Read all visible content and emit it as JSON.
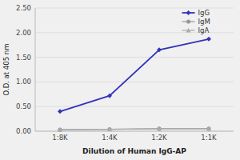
{
  "chart_data": {
    "type": "line",
    "categories": [
      "1:8K",
      "1:4K",
      "1:2K",
      "1:1K"
    ],
    "series": [
      {
        "name": "IgG",
        "color": "#3333bb",
        "marker": "diamond",
        "values": [
          0.4,
          0.72,
          1.65,
          1.87
        ]
      },
      {
        "name": "IgM",
        "color": "#999999",
        "marker": "circle",
        "values": [
          0.03,
          0.04,
          0.05,
          0.05
        ]
      },
      {
        "name": "IgA",
        "color": "#aaaaaa",
        "marker": "triangle",
        "values": [
          0.03,
          0.04,
          0.05,
          0.05
        ]
      }
    ],
    "x_label": "Dilution of Human IgG-AP",
    "y_label": "O.D. at 405 nm",
    "ylim": [
      0.0,
      2.5
    ],
    "yticks": [
      {
        "value": 0.0,
        "label": "0.00"
      },
      {
        "value": 0.5,
        "label": "0.50"
      },
      {
        "value": 1.0,
        "label": "1.00"
      },
      {
        "value": 1.5,
        "label": "1.50"
      },
      {
        "value": 2.0,
        "label": "2.00"
      },
      {
        "value": 2.5,
        "label": "2.50"
      }
    ],
    "grid": true,
    "legend": "upper right"
  }
}
